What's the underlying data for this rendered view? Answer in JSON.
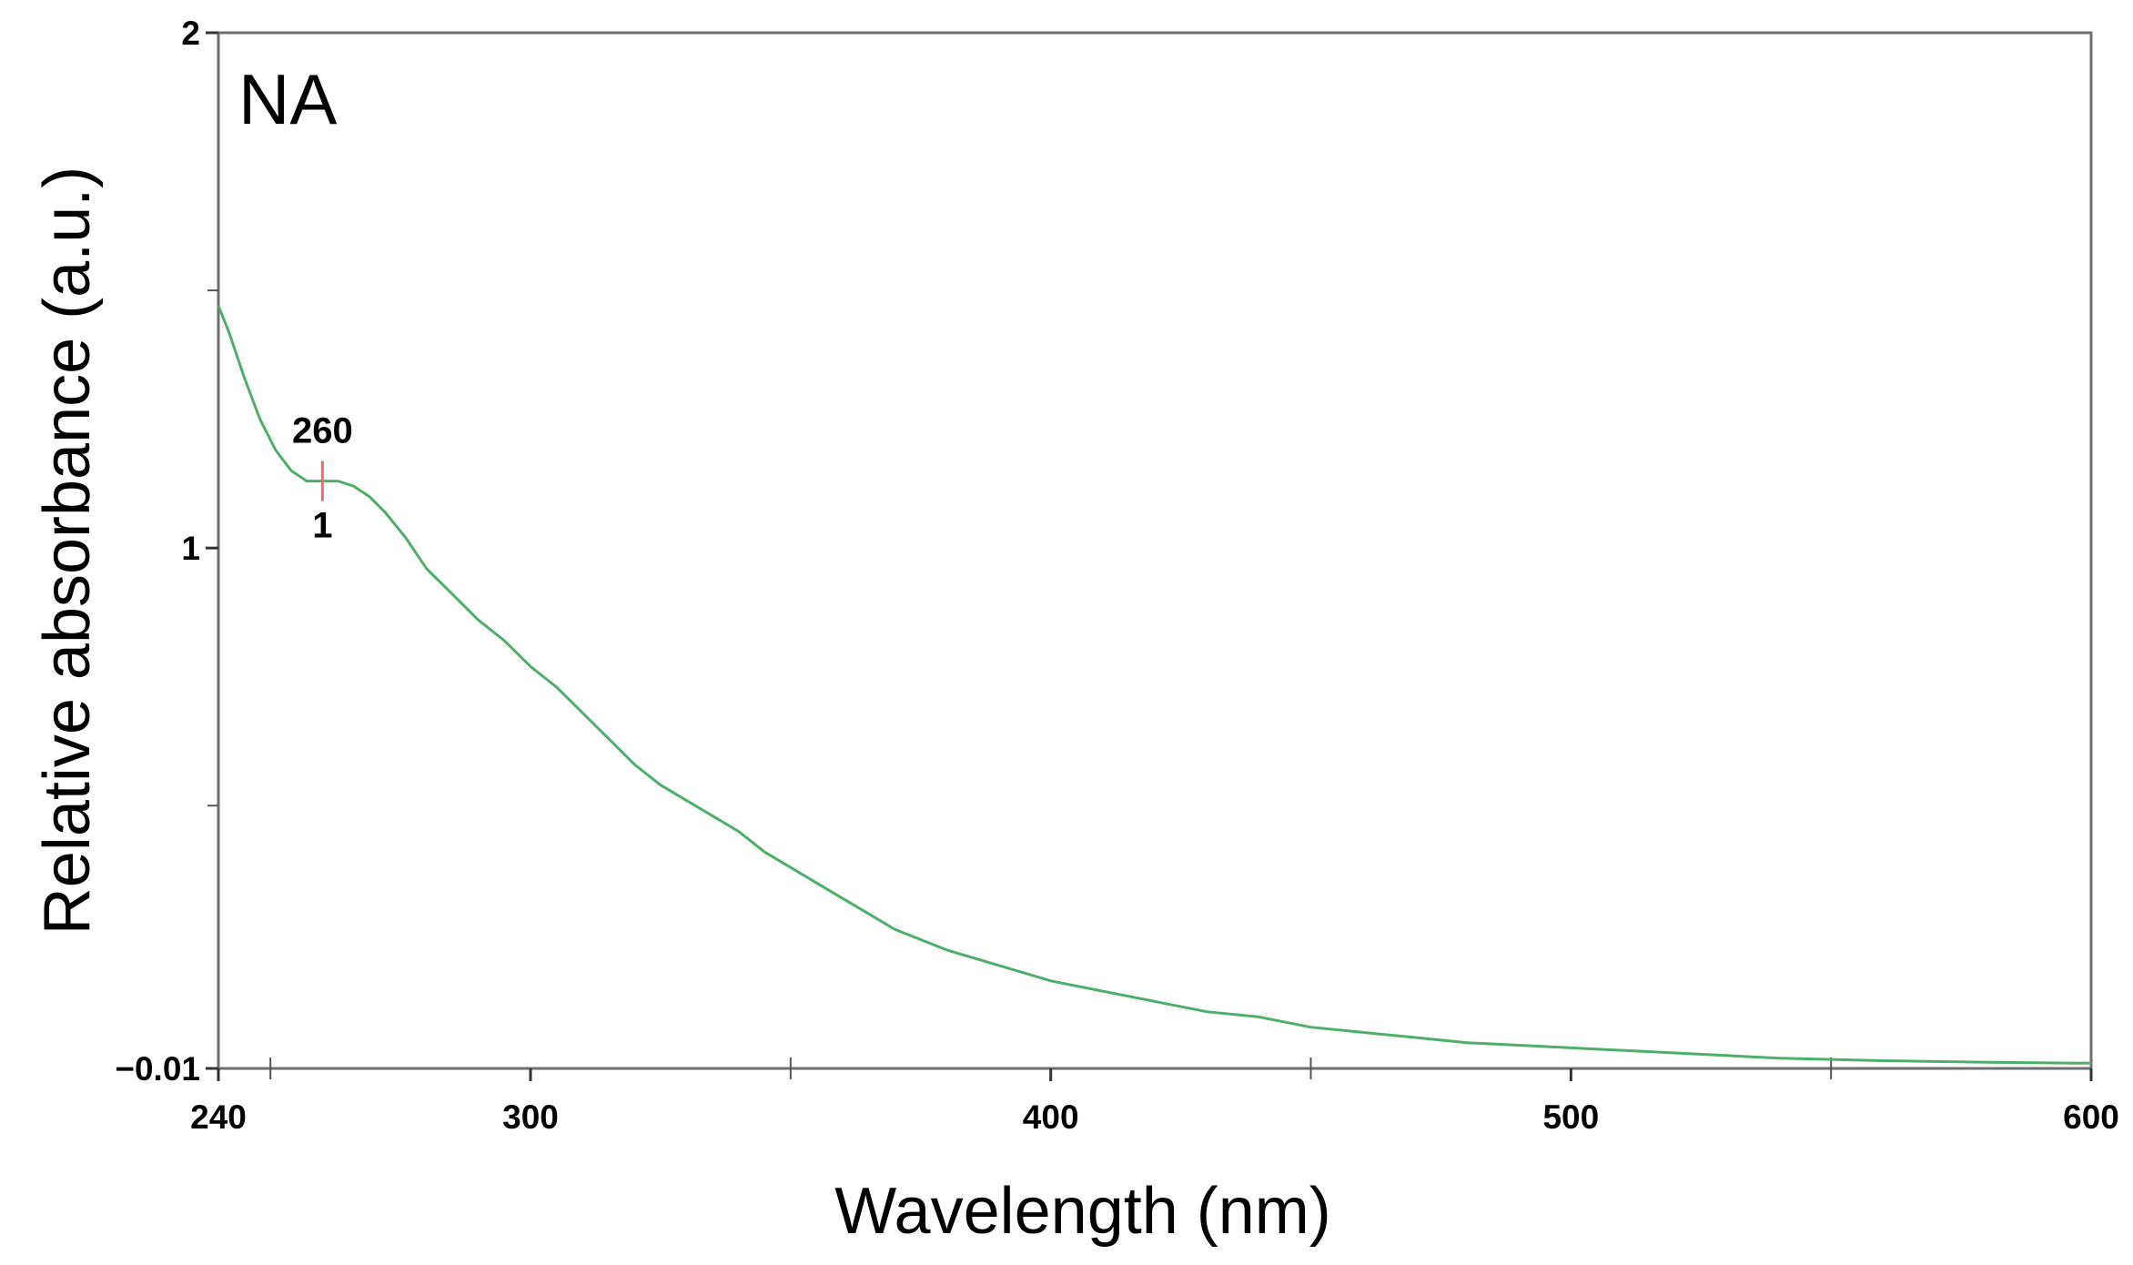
{
  "chart_data": {
    "type": "line",
    "panel_label": "NA",
    "xlabel": "Wavelength (nm)",
    "ylabel": "Relative absorbance (a.u.)",
    "xlim": [
      240,
      600
    ],
    "ylim": [
      -0.01,
      2
    ],
    "x_ticks": [
      240,
      300,
      400,
      500,
      600
    ],
    "x_minor_ticks": [
      250,
      350,
      450,
      550
    ],
    "y_ticks": [
      {
        "value": -0.01,
        "label": "−0.01"
      },
      {
        "value": 1,
        "label": "1"
      },
      {
        "value": 2,
        "label": "2"
      }
    ],
    "y_minor_ticks": [
      0.5,
      1.5
    ],
    "grid": false,
    "line_color": "#4caf6a",
    "marker_color": "#ee6b6b",
    "annotations": [
      {
        "x": 260,
        "y": 1.13,
        "label_above": "260",
        "label_below": "1"
      }
    ],
    "series": [
      {
        "x": [
          240,
          242,
          245,
          248,
          251,
          254,
          257,
          260,
          263,
          266,
          269,
          272,
          276,
          280,
          285,
          290,
          295,
          300,
          305,
          310,
          315,
          320,
          325,
          330,
          335,
          340,
          345,
          350,
          355,
          360,
          365,
          370,
          375,
          380,
          390,
          400,
          410,
          420,
          430,
          440,
          450,
          460,
          470,
          480,
          490,
          500,
          520,
          540,
          560,
          580,
          600
        ],
        "y": [
          1.47,
          1.42,
          1.33,
          1.25,
          1.19,
          1.15,
          1.13,
          1.13,
          1.13,
          1.12,
          1.1,
          1.07,
          1.02,
          0.96,
          0.91,
          0.86,
          0.82,
          0.77,
          0.73,
          0.68,
          0.63,
          0.58,
          0.54,
          0.51,
          0.48,
          0.45,
          0.41,
          0.38,
          0.35,
          0.32,
          0.29,
          0.26,
          0.24,
          0.22,
          0.19,
          0.16,
          0.14,
          0.12,
          0.1,
          0.09,
          0.07,
          0.06,
          0.05,
          0.04,
          0.035,
          0.03,
          0.02,
          0.01,
          0.005,
          0.002,
          0.0
        ]
      }
    ]
  }
}
